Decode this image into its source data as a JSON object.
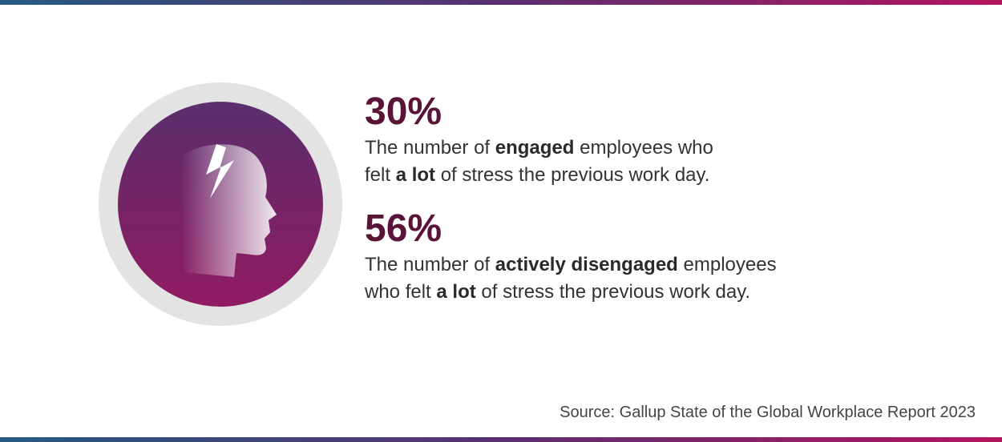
{
  "stats": [
    {
      "value": "30%",
      "lines": [
        [
          {
            "text": "The number of "
          },
          {
            "text": "engaged",
            "bold": true
          },
          {
            "text": " employees who"
          }
        ],
        [
          {
            "text": "felt "
          },
          {
            "text": "a lot",
            "bold": true
          },
          {
            "text": " of stress the previous work day."
          }
        ]
      ]
    },
    {
      "value": "56%",
      "lines": [
        [
          {
            "text": "The number of "
          },
          {
            "text": "actively disengaged",
            "bold": true
          },
          {
            "text": " employees"
          }
        ],
        [
          {
            "text": "who felt "
          },
          {
            "text": "a lot",
            "bold": true
          },
          {
            "text": " of stress the previous work day."
          }
        ]
      ]
    }
  ],
  "source": "Source: Gallup State of the Global Workplace Report 2023"
}
